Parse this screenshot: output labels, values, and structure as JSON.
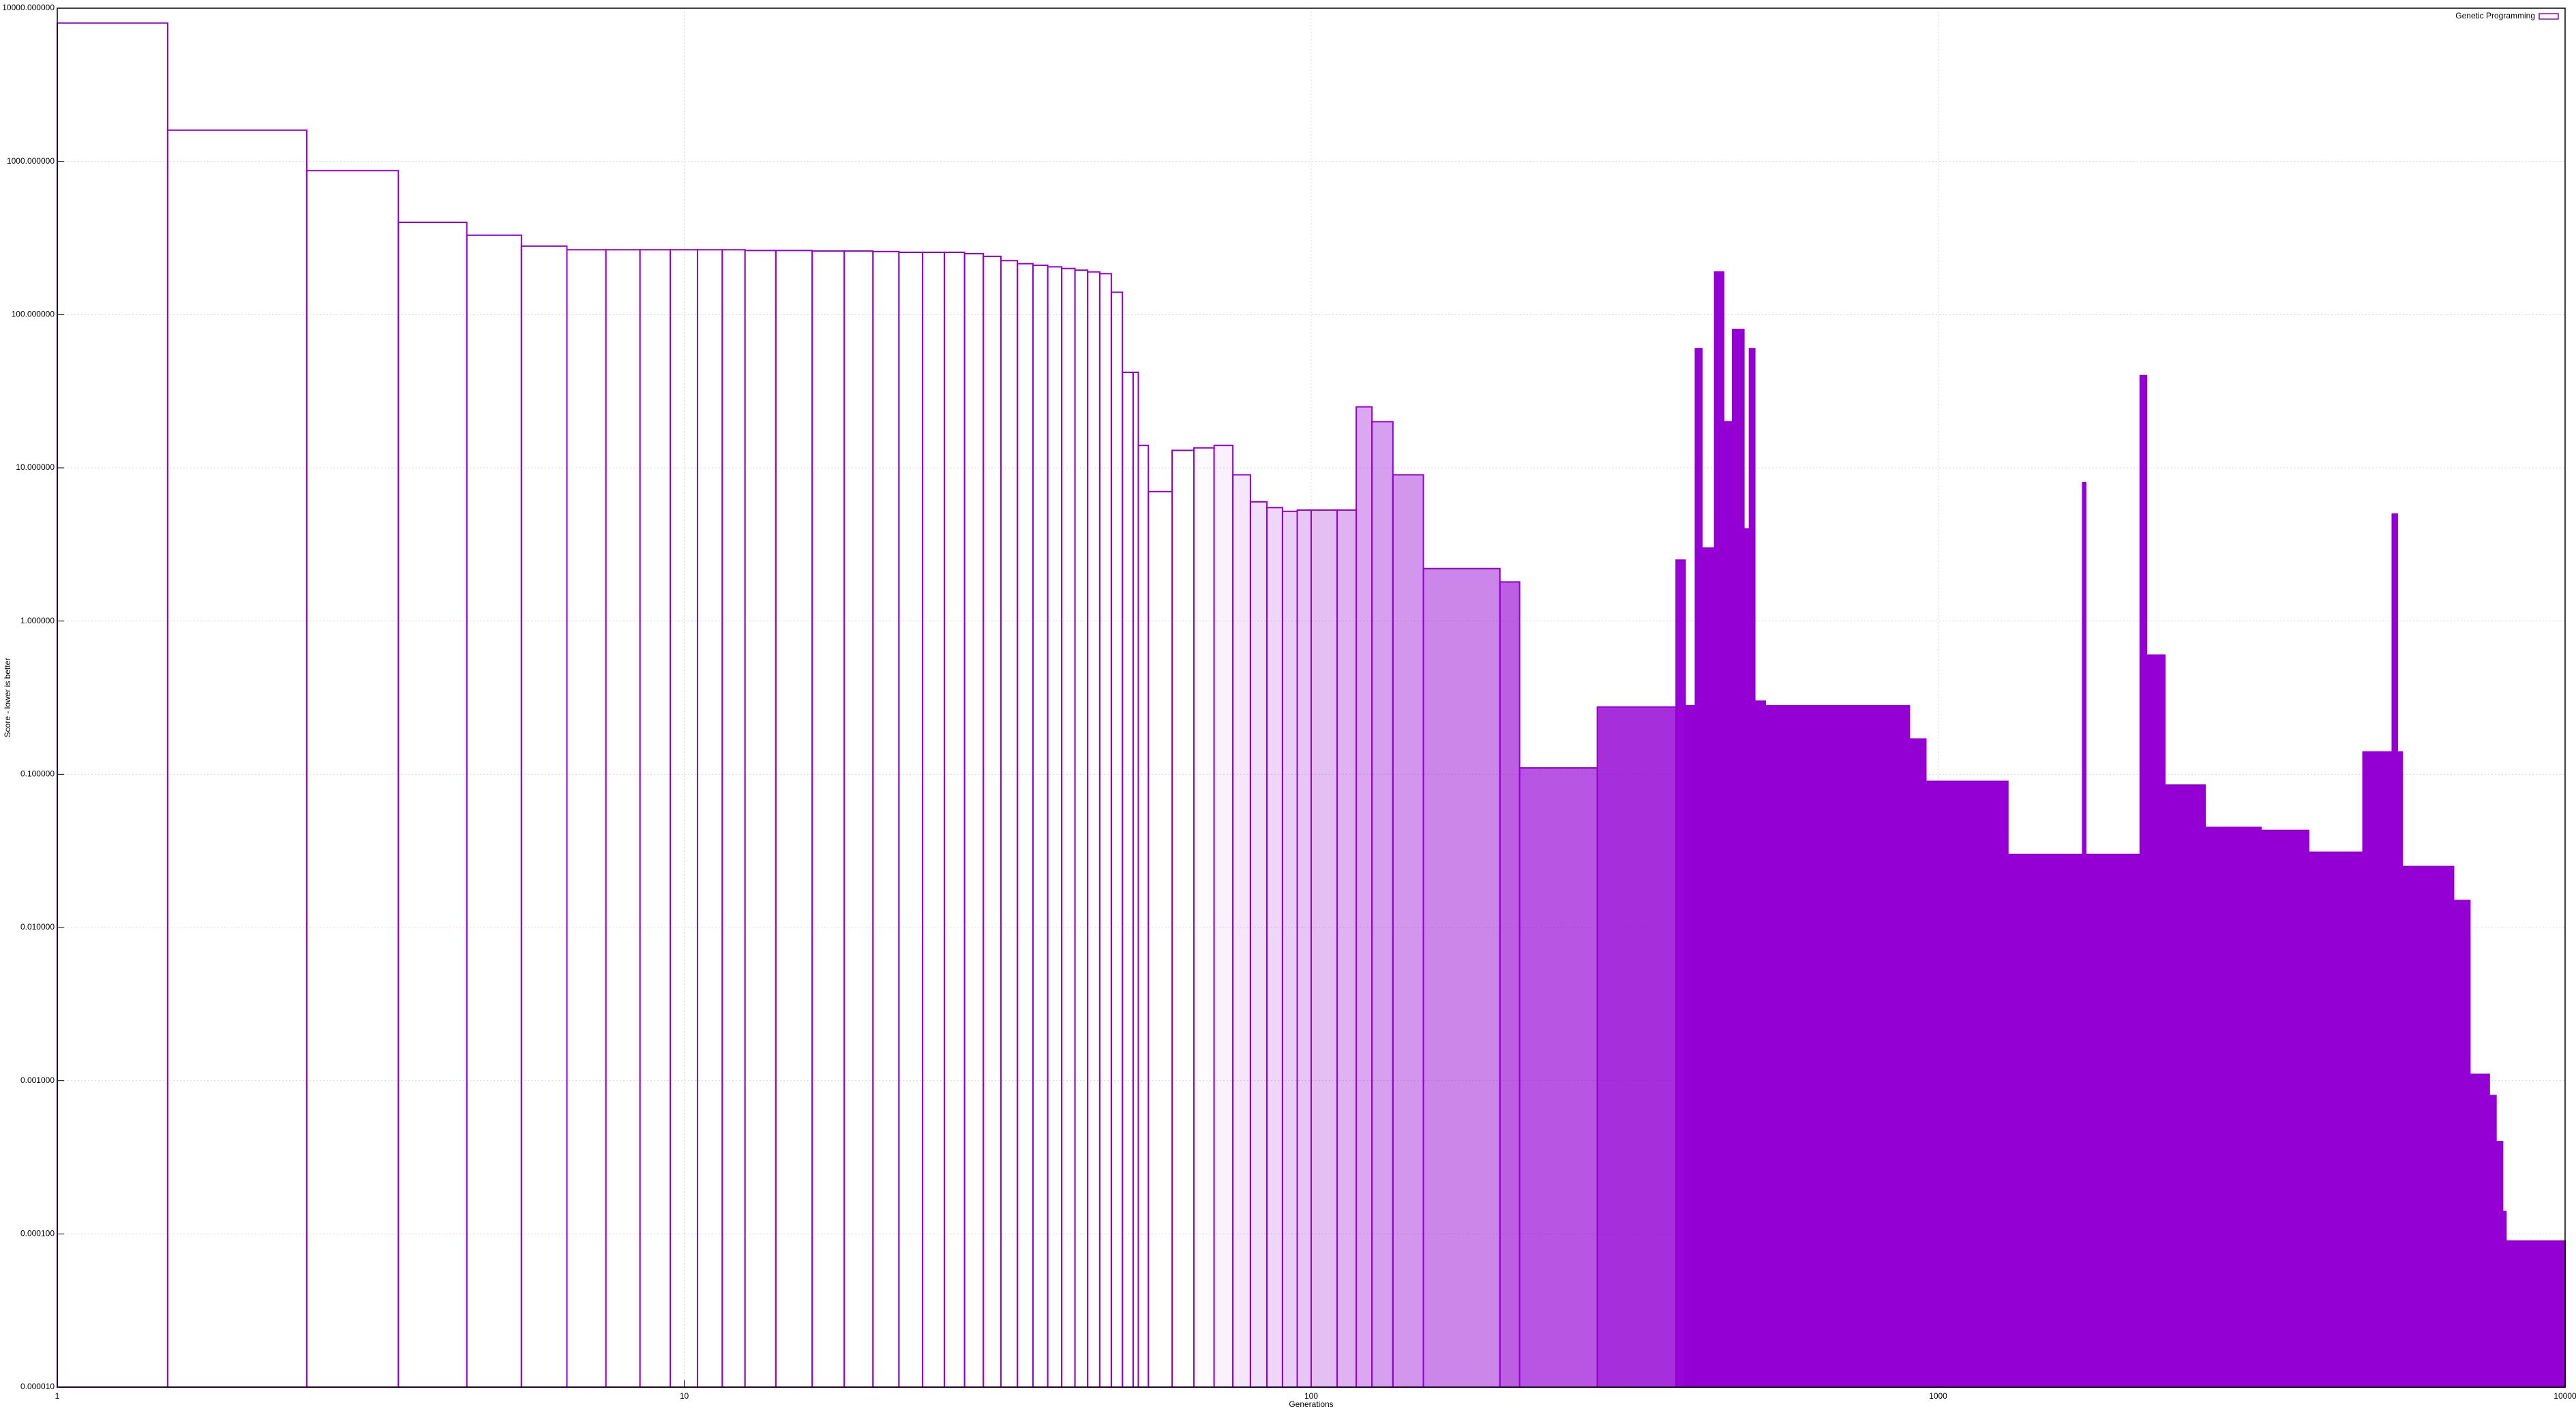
{
  "chart_data": {
    "type": "bar",
    "xlabel": "Generations",
    "ylabel": "Score - lower is better",
    "x": [
      1,
      1.5,
      2.5,
      3.5,
      4.5,
      5.5,
      6.5,
      7.5,
      8.5,
      9.5,
      10.5,
      11.5,
      12.5,
      14,
      16,
      18,
      20,
      22,
      24,
      26,
      28,
      30,
      32,
      34,
      36,
      38,
      40,
      42,
      44,
      46,
      48,
      50,
      52,
      53,
      55,
      60,
      65,
      70,
      75,
      80,
      85,
      90,
      95,
      100,
      110,
      118,
      125,
      135,
      151,
      200,
      215,
      286,
      382,
      395,
      410,
      420,
      440,
      455,
      470,
      490,
      500,
      510,
      530,
      900,
      956,
      1292,
      1700,
      1720,
      2100,
      2150,
      2300,
      2666,
      3273,
      3900,
      4760,
      5300,
      5400,
      5500,
      6640,
      7050,
      7570,
      7760,
      7950,
      8050
    ],
    "series": [
      {
        "name": "Genetic Programming",
        "color": "#9400d3",
        "values": [
          8000,
          1600,
          870,
          400,
          330,
          280,
          265,
          265,
          265,
          265,
          265,
          265,
          262,
          262,
          260,
          260,
          258,
          255,
          255,
          255,
          250,
          240,
          225,
          215,
          210,
          205,
          200,
          195,
          190,
          185,
          140,
          42,
          42,
          14,
          7,
          13,
          13.5,
          14,
          9,
          6,
          5.5,
          5.2,
          5.3,
          5.3,
          5.3,
          25,
          20,
          9,
          2.2,
          1.8,
          0.11,
          0.275,
          2.5,
          0.28,
          60,
          3,
          190,
          20,
          80,
          4,
          60,
          0.3,
          0.28,
          0.17,
          0.09,
          0.03,
          8,
          0.03,
          40,
          0.6,
          0.085,
          0.045,
          0.043,
          0.031,
          0.14,
          5,
          0.14,
          0.025,
          0.015,
          0.0011,
          0.0008,
          0.0004,
          0.00014,
          9e-05
        ]
      }
    ],
    "xlim": [
      1,
      10000
    ],
    "xticks": [
      1,
      10,
      100,
      1000,
      10000
    ],
    "ylim": [
      1e-05,
      10000
    ],
    "yticks": [
      {
        "value": 1e-05,
        "label": "0.000010"
      },
      {
        "value": 0.0001,
        "label": "0.000100"
      },
      {
        "value": 0.001,
        "label": "0.001000"
      },
      {
        "value": 0.01,
        "label": "0.010000"
      },
      {
        "value": 0.1,
        "label": "0.100000"
      },
      {
        "value": 1,
        "label": "1.000000"
      },
      {
        "value": 10,
        "label": "10.000000"
      },
      {
        "value": 100,
        "label": "100.000000"
      },
      {
        "value": 1000,
        "label": "1000.000000"
      },
      {
        "value": 10000,
        "label": "10000.000000"
      }
    ],
    "xscale": "log",
    "yscale": "log",
    "grid": true,
    "legend": "upper right"
  }
}
